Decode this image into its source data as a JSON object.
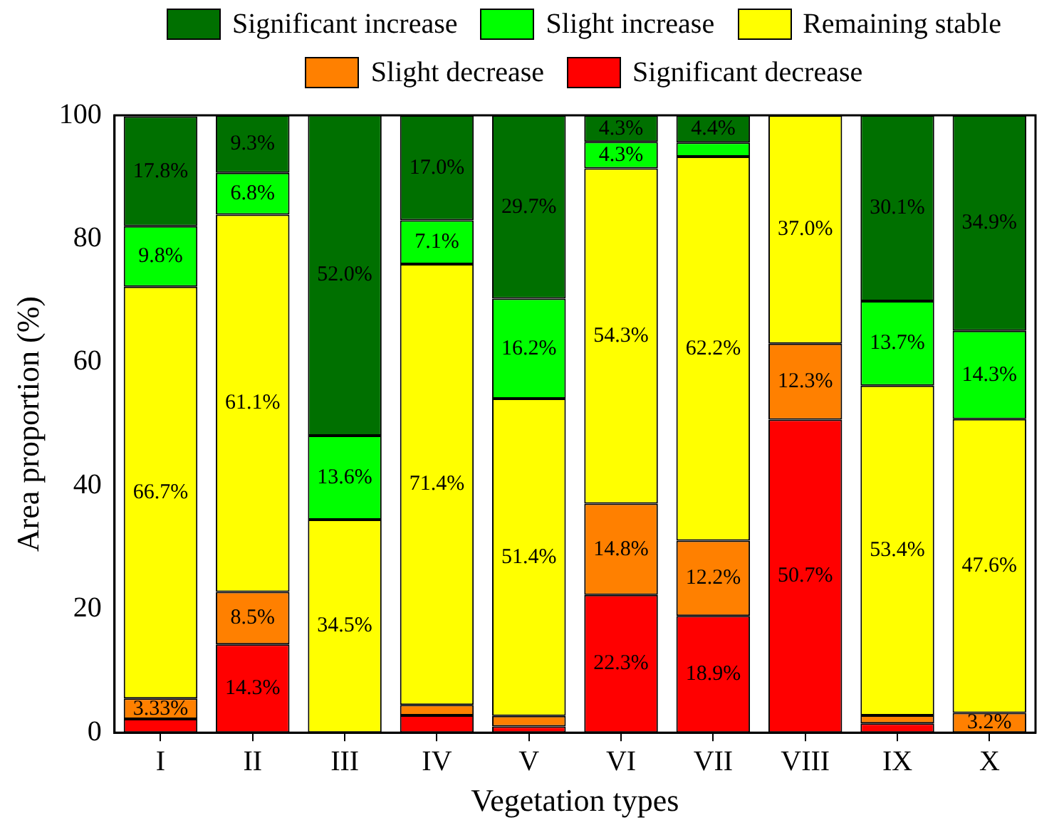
{
  "chart_data": {
    "type": "bar",
    "stacked": true,
    "xlabel": "Vegetation types",
    "ylabel": "Area proportion (%)",
    "categories": [
      "I",
      "II",
      "III",
      "IV",
      "V",
      "VI",
      "VII",
      "VIII",
      "IX",
      "X"
    ],
    "ylim": [
      0,
      100
    ],
    "yticks": [
      0,
      20,
      40,
      60,
      80,
      100
    ],
    "grid": false,
    "legend": "top",
    "series": [
      {
        "name": "Significant decrease",
        "color": "#ff0000",
        "values": [
          2.2,
          14.3,
          0,
          2.8,
          1.0,
          22.3,
          18.9,
          50.7,
          1.5,
          0
        ],
        "value_labels": [
          null,
          "14.3%",
          null,
          null,
          null,
          "22.3%",
          "18.9%",
          "50.7%",
          null,
          null
        ]
      },
      {
        "name": "Slight decrease",
        "color": "#ff8000",
        "values": [
          3.33,
          8.5,
          0,
          1.7,
          1.7,
          14.8,
          12.2,
          12.3,
          1.3,
          3.2
        ],
        "value_labels": [
          "3.33%",
          "8.5%",
          null,
          null,
          null,
          "14.8%",
          "12.2%",
          "12.3%",
          null,
          "3.2%"
        ]
      },
      {
        "name": "Remaining stable",
        "color": "#ffff00",
        "values": [
          66.7,
          61.1,
          34.5,
          71.4,
          51.4,
          54.3,
          62.2,
          37.0,
          53.4,
          47.6
        ],
        "value_labels": [
          "66.7%",
          "61.1%",
          "34.5%",
          "71.4%",
          "51.4%",
          "54.3%",
          "62.2%",
          "37.0%",
          "53.4%",
          "47.6%"
        ]
      },
      {
        "name": "Slight increase",
        "color": "#00ff00",
        "values": [
          9.8,
          6.8,
          13.6,
          7.1,
          16.2,
          4.3,
          2.3,
          0,
          13.7,
          14.3
        ],
        "value_labels": [
          "9.8%",
          "6.8%",
          "13.6%",
          "7.1%",
          "16.2%",
          "4.3%",
          null,
          null,
          "13.7%",
          "14.3%"
        ]
      },
      {
        "name": "Significant increase",
        "color": "#007000",
        "values": [
          17.8,
          9.3,
          52.0,
          17.0,
          29.7,
          4.3,
          4.4,
          0,
          30.1,
          34.9
        ],
        "value_labels": [
          "17.8%",
          "9.3%",
          "52.0%",
          "17.0%",
          "29.7%",
          "4.3%",
          "4.4%",
          null,
          "30.1%",
          "34.9%"
        ]
      }
    ]
  }
}
